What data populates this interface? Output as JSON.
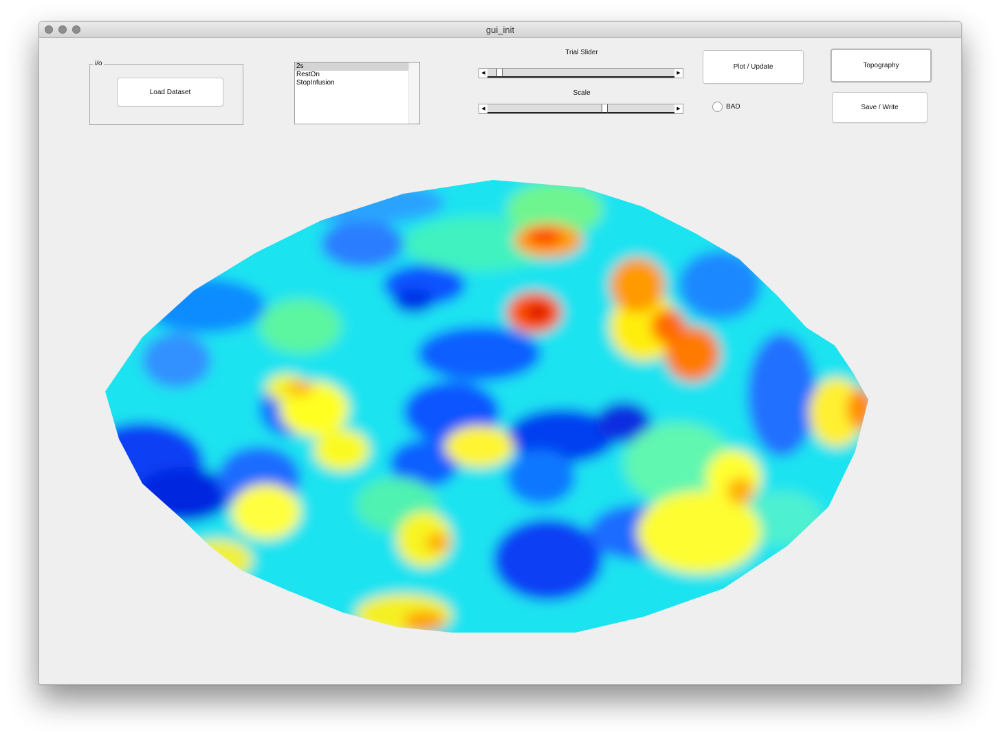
{
  "window": {
    "title": "gui_init"
  },
  "io_panel": {
    "title": "i/o",
    "load_button": "Load Dataset"
  },
  "listbox": {
    "items": [
      {
        "label": "2s",
        "selected": true
      },
      {
        "label": "RestOn",
        "selected": false
      },
      {
        "label": "StopInfusion",
        "selected": false
      }
    ]
  },
  "trial_slider": {
    "label": "Trial Slider",
    "value_fraction": 0.05
  },
  "scale_slider": {
    "label": "Scale",
    "value_fraction": 0.63
  },
  "plot_button": "Plot / Update",
  "bad_checkbox": {
    "label": "BAD",
    "checked": false
  },
  "topography_button": "Topography",
  "save_button": "Save / Write",
  "colormap": "jet",
  "colors": {
    "window_bg": "#efefef",
    "titlebar": "#dcdcdc"
  }
}
